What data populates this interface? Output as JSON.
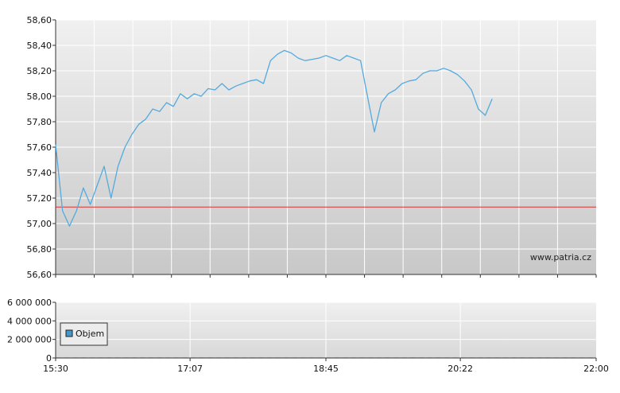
{
  "chart_data": [
    {
      "type": "line",
      "title": "",
      "ylim": [
        56.6,
        58.6
      ],
      "y_ticks": [
        "58,60",
        "58,40",
        "58,20",
        "58,00",
        "57,80",
        "57,60",
        "57,40",
        "57,20",
        "57,00",
        "56,80",
        "56,60"
      ],
      "y_tick_values": [
        58.6,
        58.4,
        58.2,
        58.0,
        57.8,
        57.6,
        57.4,
        57.2,
        57.0,
        56.8,
        56.6
      ],
      "reference_line": 57.13,
      "watermark": "www.patria.cz",
      "grid": true,
      "colors": {
        "line": "#55aadd",
        "reference": "#dd3333",
        "grid": "#ffffff"
      },
      "x_minutes": [
        0,
        5,
        10,
        15,
        20,
        25,
        30,
        35,
        40,
        45,
        50,
        55,
        60,
        65,
        70,
        75,
        80,
        85,
        90,
        95,
        100,
        105,
        110,
        115,
        120,
        125,
        130,
        135,
        140,
        145,
        150,
        155,
        160,
        165,
        170,
        175,
        180,
        185,
        190,
        195,
        200,
        205,
        210,
        215,
        220,
        225,
        230,
        235,
        240,
        245,
        250,
        255,
        260,
        265,
        270,
        275,
        280,
        285,
        290,
        295,
        300,
        305,
        310,
        315,
        320,
        325,
        330,
        335,
        340,
        345,
        350,
        355,
        360,
        365,
        370,
        375,
        380,
        385,
        390
      ],
      "series": [
        {
          "values": [
            57.62,
            57.1,
            56.98,
            57.1,
            57.28,
            57.15,
            57.3,
            57.45,
            57.2,
            57.45,
            57.6,
            57.7,
            57.78,
            57.82,
            57.9,
            57.88,
            57.95,
            57.92,
            58.02,
            57.98,
            58.02,
            58.0,
            58.06,
            58.05,
            58.1,
            58.05,
            58.08,
            58.1,
            58.12,
            58.13,
            58.1,
            58.28,
            58.33,
            58.36,
            58.34,
            58.3,
            58.28,
            58.29,
            58.3,
            58.32,
            58.3,
            58.28,
            58.32,
            58.3,
            58.28,
            58.0,
            57.72,
            57.95,
            58.02,
            58.05,
            58.1,
            58.12,
            58.13,
            58.18,
            58.2,
            58.2,
            58.22,
            58.2,
            58.17,
            58.12,
            58.05,
            57.9,
            57.85,
            57.98
          ]
        }
      ]
    },
    {
      "type": "bar",
      "ylim": [
        0,
        6000000
      ],
      "y_ticks": [
        "6 000 000",
        "4 000 000",
        "2 000 000",
        "0"
      ],
      "y_tick_values": [
        6000000,
        4000000,
        2000000,
        0
      ],
      "x_ticks": [
        "15:30",
        "17:07",
        "18:45",
        "20:22",
        "22:00"
      ],
      "x_tick_minutes": [
        0,
        97,
        195,
        292,
        390
      ],
      "legend": "Objem",
      "legend_position": "bottom-left",
      "colors": {
        "bar": "#4488cc",
        "legend_swatch": "#4499cc"
      },
      "values": [
        0,
        0,
        0,
        0,
        0,
        0,
        0,
        0,
        0,
        0,
        0,
        0,
        0,
        0,
        0,
        0,
        0,
        0,
        0,
        0,
        0,
        0,
        0,
        0,
        0,
        0,
        0,
        0,
        0,
        0,
        0,
        0,
        0,
        0,
        0,
        0,
        0,
        0,
        0,
        0,
        0,
        0,
        0,
        0,
        0,
        0,
        0,
        0,
        0,
        0,
        0,
        0,
        0,
        0,
        0,
        0,
        0,
        0,
        0,
        0,
        0,
        0,
        0,
        0
      ]
    }
  ]
}
